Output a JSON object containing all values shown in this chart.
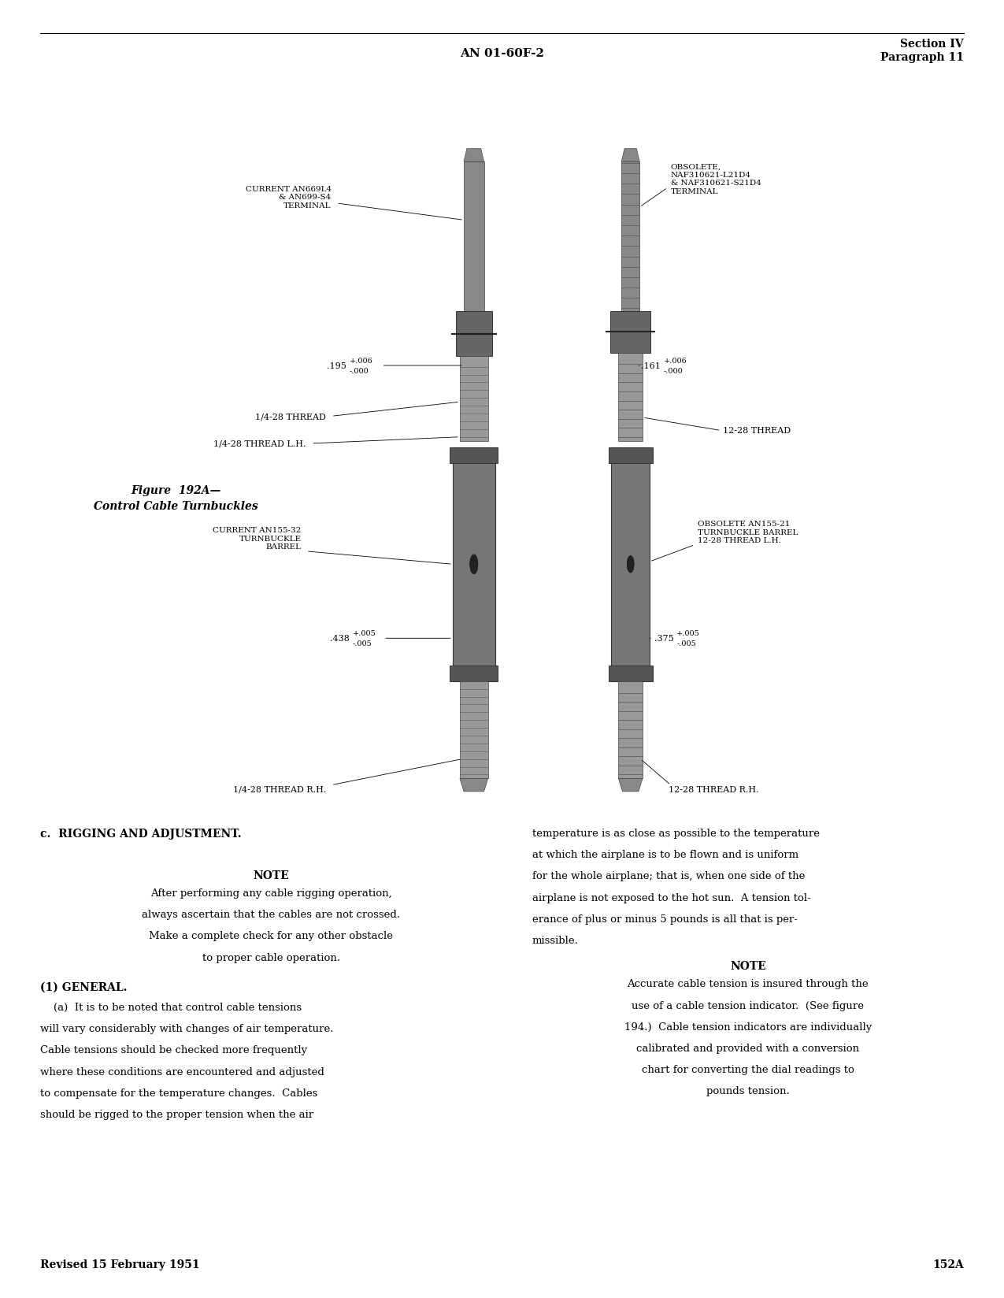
{
  "background_color": "#ffffff",
  "page_header_center": "AN 01-60F-2",
  "page_header_right_line1": "Section IV",
  "page_header_right_line2": "Paragraph 11",
  "page_footer_left": "Revised 15 February 1951",
  "page_footer_right": "152A",
  "figure_caption_line1": "Figure  192A—",
  "figure_caption_line2": "Control Cable Turnbuckles",
  "section_c_heading": "c.  RIGGING AND ADJUSTMENT.",
  "note1_heading": "NOTE",
  "note1_body": "After performing any cable rigging operation,\nalways ascertain that the cables are not crossed.\nMake a complete check for any other obstacle\nto proper cable operation.",
  "subsection_1": "(1) GENERAL.",
  "para_a_body": "    (a)  It is to be noted that control cable tensions\nwill vary considerably with changes of air temperature.\nCable tensions should be checked more frequently\nwhere these conditions are encountered and adjusted\nto compensate for the temperature changes.  Cables\nshould be rigged to the proper tension when the air",
  "right_col_body1": "temperature is as close as possible to the temperature\nat which the airplane is to be flown and is uniform\nfor the whole airplane; that is, when one side of the\nairplane is not exposed to the hot sun.  A tension tol-\nerance of plus or minus 5 pounds is all that is per-\nmissible.",
  "note2_heading": "NOTE",
  "note2_body": "Accurate cable tension is insured through the\nuse of a cable tension indicator.  (See figure\n194.)  Cable tension indicators are individually\ncalibrated and provided with a conversion\nchart for converting the dial readings to\npounds tension."
}
